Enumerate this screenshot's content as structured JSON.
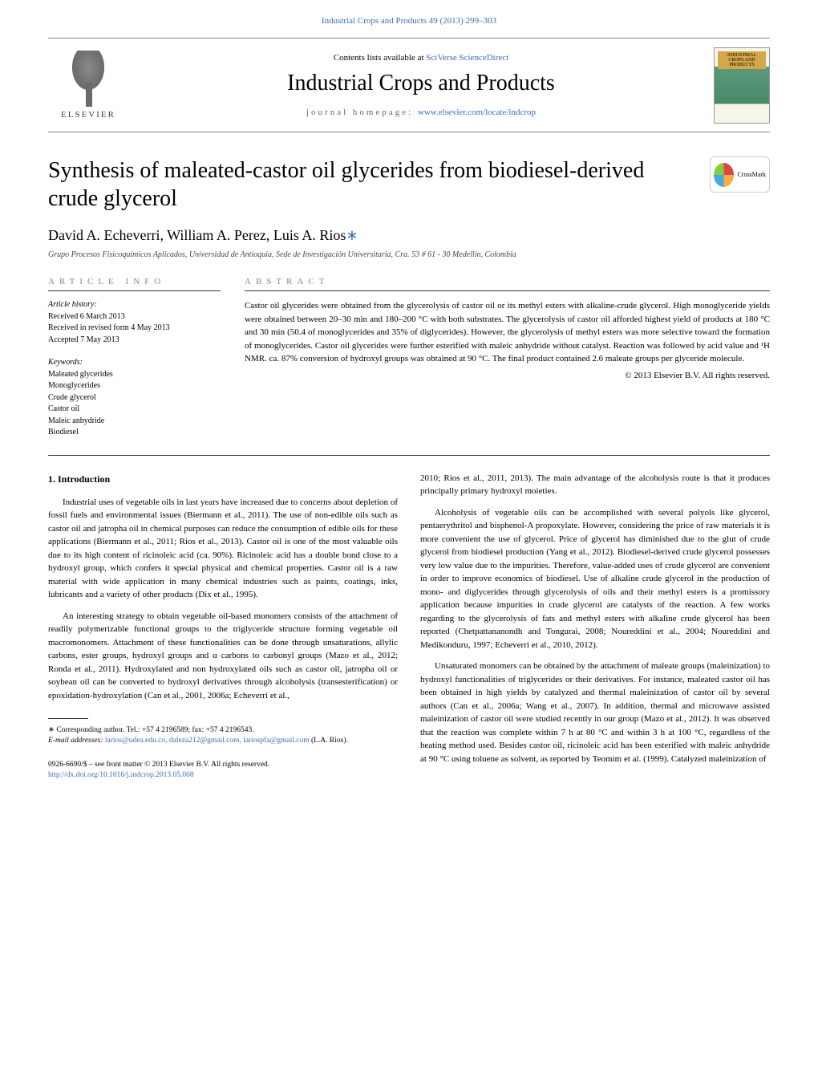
{
  "top_link": {
    "text": "Industrial Crops and Products 49 (2013) 299–303",
    "color": "#3c6eb4"
  },
  "header": {
    "contents_prefix": "Contents lists available at ",
    "contents_link": "SciVerse ScienceDirect",
    "journal_name": "Industrial Crops and Products",
    "homepage_prefix": "journal homepage: ",
    "homepage_link": "www.elsevier.com/locate/indcrop",
    "elsevier_label": "ELSEVIER",
    "cover_label": "INDUSTRIAL CROPS AND PRODUCTS"
  },
  "article": {
    "title": "Synthesis of maleated-castor oil glycerides from biodiesel-derived crude glycerol",
    "crossmark_label": "CrossMark",
    "authors": "David A. Echeverri, William A. Perez, Luis A. Rios",
    "affiliation": "Grupo Procesos Fisicoquímicos Aplicados, Universidad de Antioquia, Sede de Investigación Universitaria, Cra. 53 # 61 - 30 Medellín, Colombia"
  },
  "article_info": {
    "header": "article info",
    "history_label": "Article history:",
    "history": [
      "Received 6 March 2013",
      "Received in revised form 4 May 2013",
      "Accepted 7 May 2013"
    ],
    "keywords_label": "Keywords:",
    "keywords": [
      "Maleated glycerides",
      "Monoglycerides",
      "Crude glycerol",
      "Castor oil",
      "Maleic anhydride",
      "Biodiesel"
    ]
  },
  "abstract": {
    "header": "abstract",
    "text": "Castor oil glycerides were obtained from the glycerolysis of castor oil or its methyl esters with alkaline-crude glycerol. High monoglyceride yields were obtained between 20–30 min and 180–200 °C with both substrates. The glycerolysis of castor oil afforded highest yield of products at 180 °C and 30 min (50.4 of monoglycerides and 35% of diglycerides). However, the glycerolysis of methyl esters was more selective toward the formation of monoglycerides. Castor oil glycerides were further esterified with maleic anhydride without catalyst. Reaction was followed by acid value and ¹H NMR. ca. 87% conversion of hydroxyl groups was obtained at 90 °C. The final product contained 2.6 maleate groups per glyceride molecule.",
    "copyright": "© 2013 Elsevier B.V. All rights reserved."
  },
  "body": {
    "section_heading": "1. Introduction",
    "left_paragraphs": [
      "Industrial uses of vegetable oils in last years have increased due to concerns about depletion of fossil fuels and environmental issues (Biermann et al., 2011). The use of non-edible oils such as castor oil and jatropha oil in chemical purposes can reduce the consumption of edible oils for these applications (Biermann et al., 2011; Rios et al., 2013). Castor oil is one of the most valuable oils due to its high content of ricinoleic acid (ca. 90%). Ricinoleic acid has a double bond close to a hydroxyl group, which confers it special physical and chemical properties. Castor oil is a raw material with wide application in many chemical industries such as paints, coatings, inks, lubricants and a variety of other products (Dix et al., 1995).",
      "An interesting strategy to obtain vegetable oil-based monomers consists of the attachment of readily polymerizable functional groups to the triglyceride structure forming vegetable oil macromonomers. Attachment of these functionalities can be done through unsaturations, allylic carbons, ester groups, hydroxyl groups and α carbons to carbonyl groups (Mazo et al., 2012; Ronda et al., 2011). Hydroxylated and non hydroxylated oils such as castor oil, jatropha oil or soybean oil can be converted to hydroxyl derivatives through alcoholysis (transesterification) or epoxidation-hydroxylation (Can et al., 2001, 2006a; Echeverri et al.,"
    ],
    "right_paragraphs": [
      "2010; Rios et al., 2011, 2013). The main advantage of the alcoholysis route is that it produces principally primary hydroxyl moieties.",
      "Alcoholysis of vegetable oils can be accomplished with several polyols like glycerol, pentaerythritol and bisphenol-A propoxylate. However, considering the price of raw materials it is more convenient the use of glycerol. Price of glycerol has diminished due to the glut of crude glycerol from biodiesel production (Yang et al., 2012). Biodiesel-derived crude glycerol possesses very low value due to the impurities. Therefore, value-added uses of crude glycerol are convenient in order to improve economics of biodiesel. Use of alkaline crude glycerol in the production of mono- and diglycerides through glycerolysis of oils and their methyl esters is a promissory application because impurities in crude glycerol are catalysts of the reaction. A few works regarding to the glycerolysis of fats and methyl esters with alkaline crude glycerol has been reported (Chetpattananondh and Tongurai, 2008; Noureddini et al., 2004; Noureddini and Medikonduru, 1997; Echeverri et al., 2010, 2012).",
      "Unsaturated monomers can be obtained by the attachment of maleate groups (maleinization) to hydroxyl functionalities of triglycerides or their derivatives. For instance, maleated castor oil has been obtained in high yields by catalyzed and thermal maleinization of castor oil by several authors (Can et al., 2006a; Wang et al., 2007). In addition, thermal and microwave assisted maleinization of castor oil were studied recently in our group (Mazo et al., 2012). It was observed that the reaction was complete within 7 h at 80 °C and within 3 h at 100 °C, regardless of the heating method used. Besides castor oil, ricinoleic acid has been esterified with maleic anhydride at 90 °C using toluene as solvent, as reported by Teomim et al. (1999). Catalyzed maleinization of"
    ]
  },
  "footnote": {
    "corresponding": "∗ Corresponding author. Tel.: +57 4 2196589; fax: +57 4 2196543.",
    "email_label": "E-mail addresses: ",
    "emails": "larios@udea.edu.co, daleza212@gmail.com, lariospfa@gmail.com",
    "email_author": " (L.A. Rios)."
  },
  "footer": {
    "issn": "0926-6690/$ – see front matter © 2013 Elsevier B.V. All rights reserved.",
    "doi": "http://dx.doi.org/10.1016/j.indcrop.2013.05.008"
  },
  "colors": {
    "link": "#3c6eb4",
    "text": "#000000",
    "muted": "#888888",
    "border": "#333333"
  },
  "typography": {
    "body_fontsize": 11,
    "title_fontsize": 28,
    "journal_fontsize": 28,
    "authors_fontsize": 18,
    "footnote_fontsize": 9.5
  }
}
